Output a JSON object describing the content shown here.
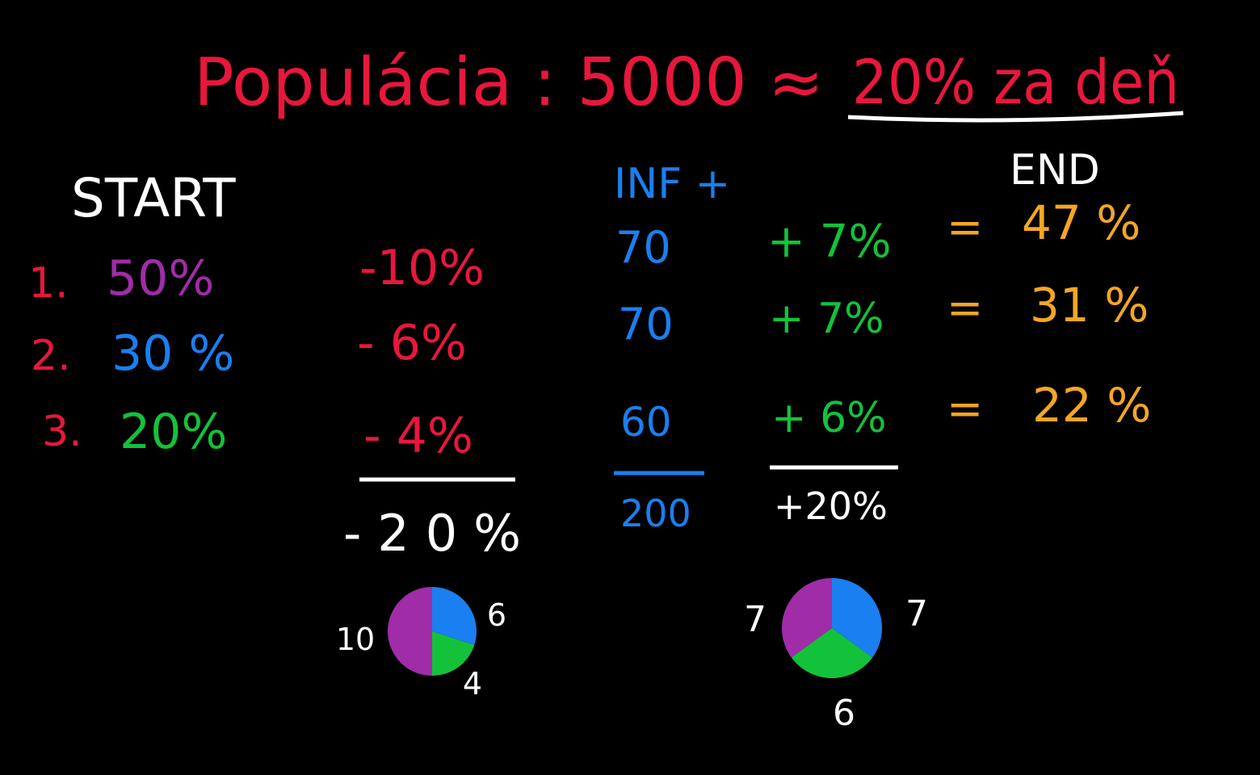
{
  "title": {
    "text": "Populácia : 5000 ≈",
    "highlight": "20% za deň"
  },
  "start": {
    "header": "START",
    "rows": [
      {
        "index": "1.",
        "share": "50%"
      },
      {
        "index": "2.",
        "share": "30 %"
      },
      {
        "index": "3.",
        "share": "20%"
      }
    ]
  },
  "loss": {
    "rows": [
      "-10%",
      "- 6%",
      "- 4%"
    ],
    "total": "-20%"
  },
  "infected": {
    "header": "INF +",
    "rows": [
      "70",
      "70",
      "60"
    ],
    "total": "200"
  },
  "gain": {
    "rows": [
      "+ 7%",
      "+ 7%",
      "+ 6%"
    ],
    "total": "+20%"
  },
  "end": {
    "header": "END",
    "rows": [
      {
        "eq": "=",
        "value": "47 %"
      },
      {
        "eq": "=",
        "value": "31 %"
      },
      {
        "eq": "=",
        "value": "22 %"
      }
    ]
  },
  "pies": [
    {
      "slices": [
        10,
        6,
        4
      ],
      "colors": [
        "#a02ca8",
        "#1a7ff0",
        "#13c23a"
      ]
    },
    {
      "slices": [
        7,
        7,
        6
      ],
      "colors": [
        "#a02ca8",
        "#1a7ff0",
        "#13c23a"
      ]
    }
  ]
}
